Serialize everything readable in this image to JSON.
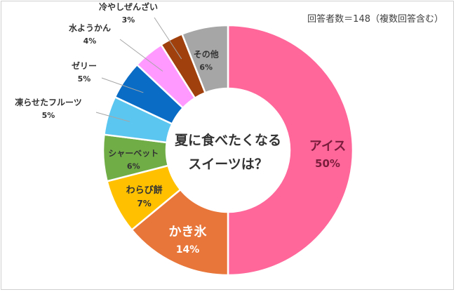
{
  "chart_data": {
    "type": "pie",
    "variant": "donut",
    "center_title_lines": [
      "夏に食べたくなる",
      "スイーツは？"
    ],
    "note": "回答者数＝148（複数回答含む）",
    "slices": [
      {
        "label": "アイス",
        "percent_label": "50%",
        "value": 50,
        "color": "#ff6699"
      },
      {
        "label": "かき氷",
        "percent_label": "14%",
        "value": 14,
        "color": "#e8763a"
      },
      {
        "label": "わらび餅",
        "percent_label": "7%",
        "value": 7,
        "color": "#ffc000"
      },
      {
        "label": "シャーベット",
        "percent_label": "6%",
        "value": 6,
        "color": "#70ad47"
      },
      {
        "label": "凍らせたフルーツ",
        "percent_label": "5%",
        "value": 5,
        "color": "#5bc6f0"
      },
      {
        "label": "ゼリー",
        "percent_label": "5%",
        "value": 5,
        "color": "#0a6cc4"
      },
      {
        "label": "水ようかん",
        "percent_label": "4%",
        "value": 4,
        "color": "#ff99ff"
      },
      {
        "label": "冷やしぜんざい",
        "percent_label": "3%",
        "value": 3,
        "color": "#a0410d"
      },
      {
        "label": "その他",
        "percent_label": "6%",
        "value": 6,
        "color": "#a6a6a6"
      }
    ]
  }
}
